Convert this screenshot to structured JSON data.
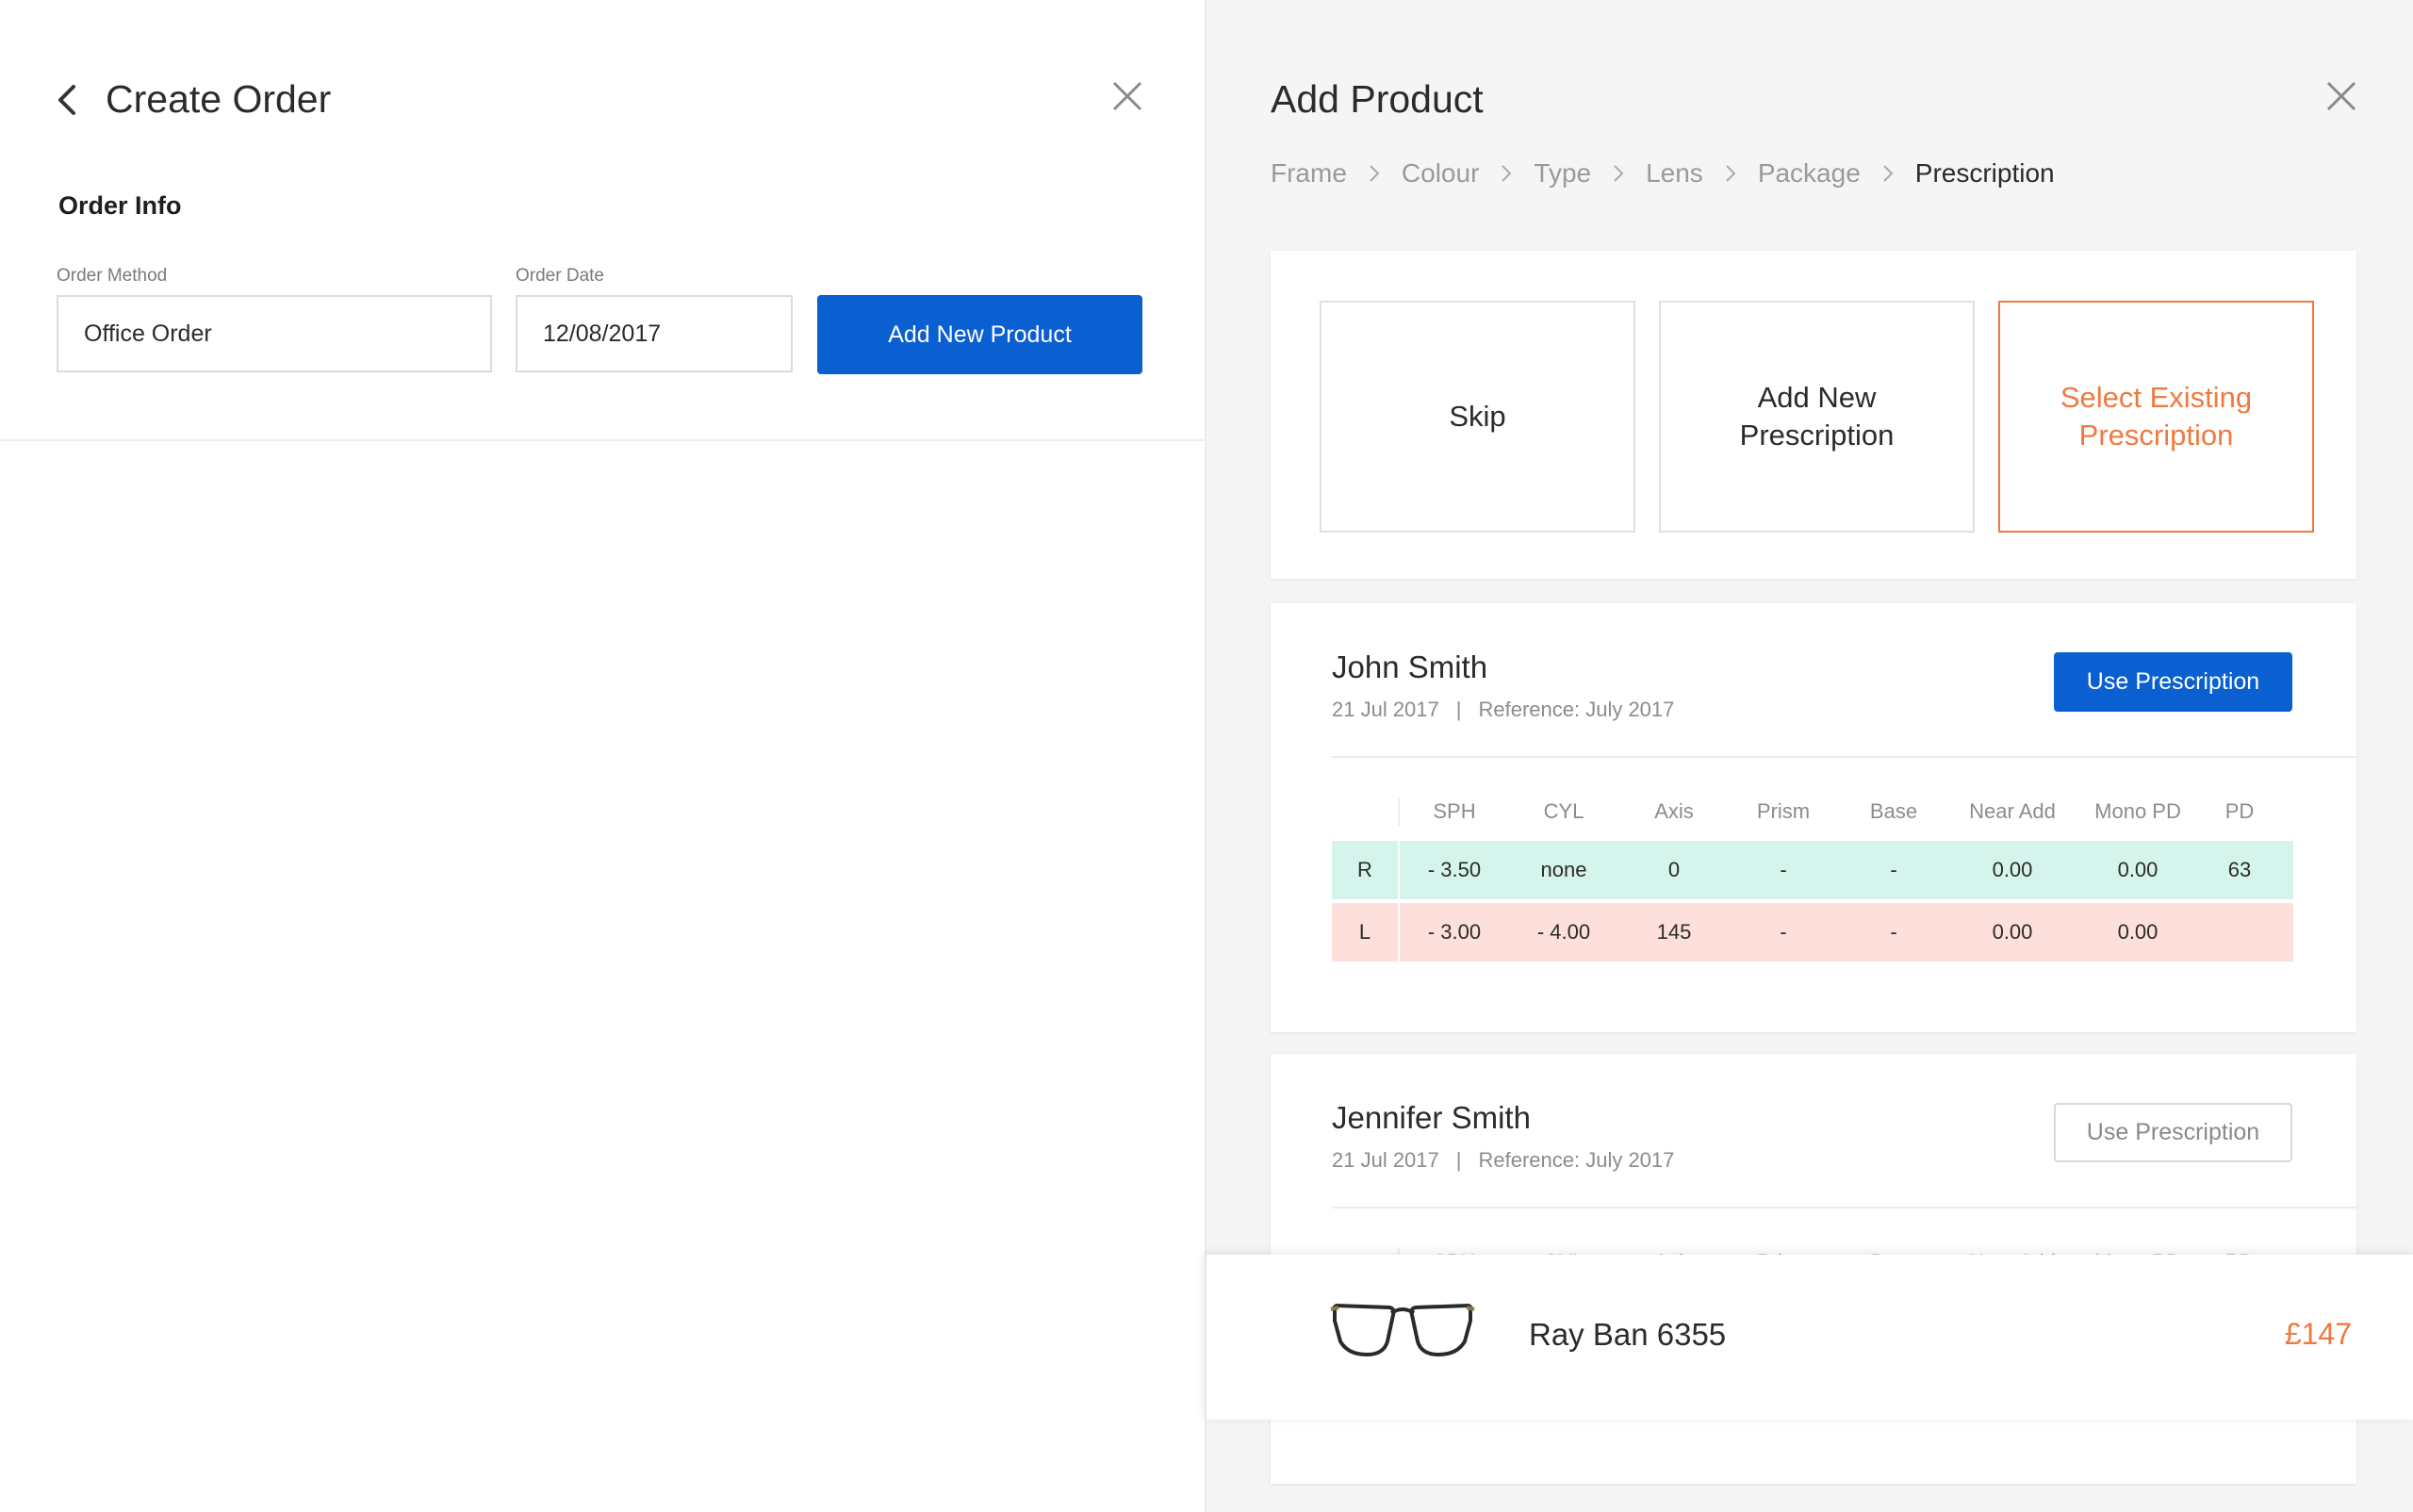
{
  "left_panel": {
    "title": "Create Order",
    "section_title": "Order Info",
    "order_method": {
      "label": "Order Method",
      "value": "Office Order"
    },
    "order_date": {
      "label": "Order Date",
      "value": "12/08/2017"
    },
    "add_product_label": "Add New Product"
  },
  "right_panel": {
    "title": "Add Product",
    "breadcrumb": [
      "Frame",
      "Colour",
      "Type",
      "Lens",
      "Package",
      "Prescription"
    ],
    "active_step": "Prescription",
    "options": {
      "skip": "Skip",
      "add_new": "Add New Prescription",
      "select_existing": "Select Existing Prescription"
    },
    "table_headers": [
      "SPH",
      "CYL",
      "Axis",
      "Prism",
      "Base",
      "Near Add",
      "Mono PD",
      "PD"
    ],
    "prescriptions": [
      {
        "name": "John Smith",
        "date": "21 Jul 2017",
        "separator": "|",
        "reference": "Reference: July 2017",
        "button": "Use Prescription",
        "rows": [
          {
            "eye": "R",
            "sph": "- 3.50",
            "cyl": "none",
            "axis": "0",
            "prism": "-",
            "base": "-",
            "near_add": "0.00",
            "mono_pd": "0.00",
            "pd": "63"
          },
          {
            "eye": "L",
            "sph": "- 3.00",
            "cyl": "- 4.00",
            "axis": "145",
            "prism": "-",
            "base": "-",
            "near_add": "0.00",
            "mono_pd": "0.00",
            "pd": ""
          }
        ]
      },
      {
        "name": "Jennifer Smith",
        "date": "21 Jul 2017",
        "separator": "|",
        "reference": "Reference: July 2017",
        "button": "Use Prescription"
      }
    ]
  },
  "product": {
    "name": "Ray Ban 6355",
    "price": "£147"
  },
  "colors": {
    "primary": "#0a5fd1",
    "accent": "#ef7a3f",
    "row_right": "#d5f5ec",
    "row_left": "#fde0dc"
  }
}
